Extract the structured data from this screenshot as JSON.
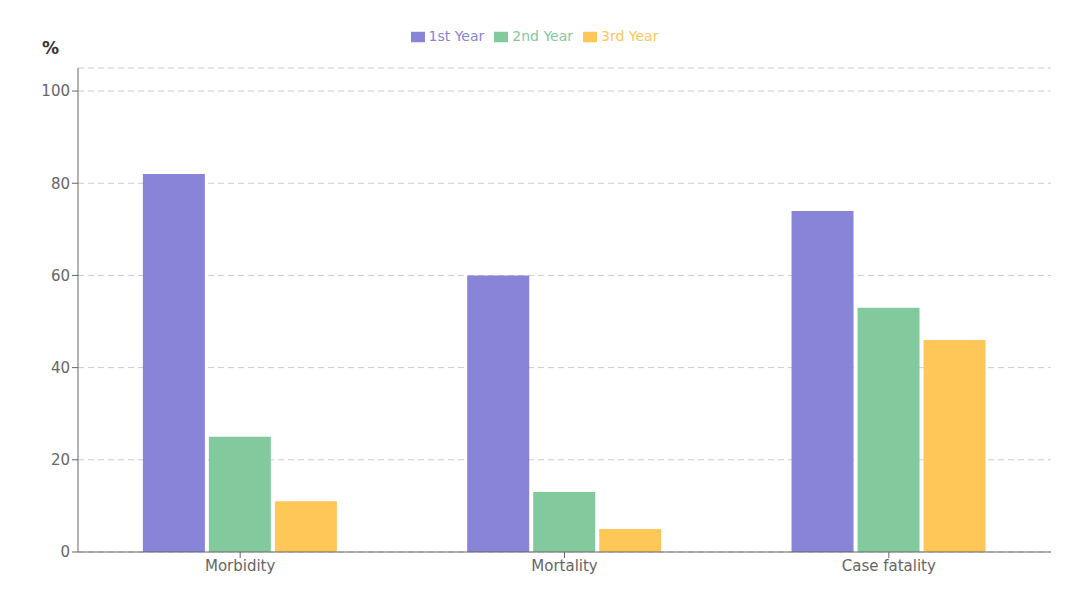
{
  "chart_data": {
    "type": "bar",
    "ylabel": "%",
    "categories": [
      "Morbidity",
      "Mortality",
      "Case fatality"
    ],
    "series": [
      {
        "name": "1st Year",
        "color": "#8884d8",
        "values": [
          82,
          60,
          74
        ]
      },
      {
        "name": "2nd Year",
        "color": "#82ca9d",
        "values": [
          25,
          13,
          53
        ]
      },
      {
        "name": "3rd Year",
        "color": "#ffc658",
        "values": [
          11,
          5,
          46
        ]
      }
    ],
    "ylim": [
      0,
      105
    ],
    "yticks": [
      0,
      20,
      40,
      60,
      80,
      100
    ],
    "grid": true,
    "legend": "top"
  }
}
